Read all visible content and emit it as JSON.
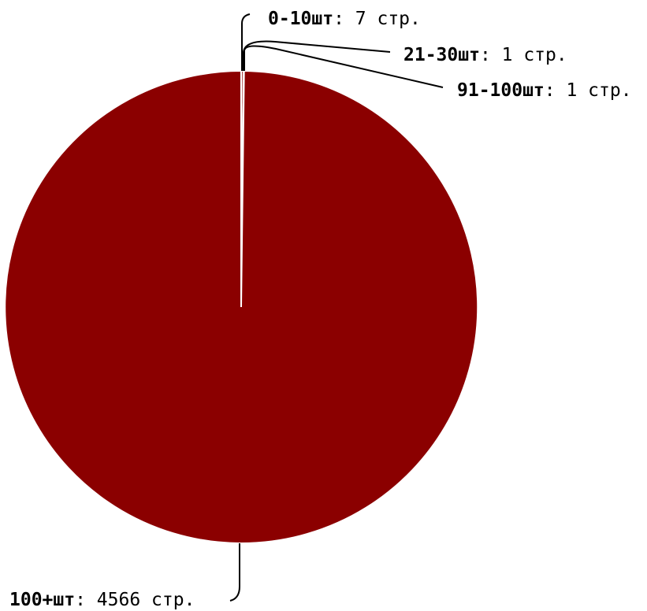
{
  "chart_data": {
    "type": "pie",
    "title": "",
    "unit_label": "стр.",
    "slices": [
      {
        "label": "100+шт",
        "value": 4566,
        "color": "#8b0000"
      },
      {
        "label": "0-10шт",
        "value": 7,
        "color": "#8b0000"
      },
      {
        "label": "21-30шт",
        "value": 1,
        "color": "#8b0000"
      },
      {
        "label": "91-100шт",
        "value": 1,
        "color": "#8b0000"
      }
    ],
    "slice_border_color": "#ffffff",
    "legend": "none"
  }
}
